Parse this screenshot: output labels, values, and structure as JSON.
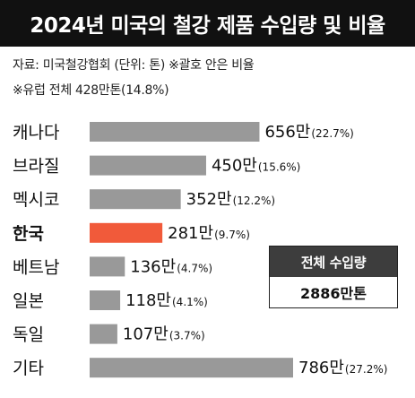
{
  "title": "2024년 미국의 철강 제품 수입량 및 비율",
  "source": "자료: 미국철강협회  (단위: 톤)  ※괄호 안은 비율",
  "note": "※유럽 전체 428만톤(14.8%)",
  "total": {
    "label": "전체 수입량",
    "value": "2886만톤"
  },
  "colors": {
    "bar": "#999999",
    "highlight": "#f15a3a"
  },
  "chart_data": {
    "type": "bar",
    "orientation": "horizontal",
    "unit": "만톤",
    "xlim": [
      0,
      786
    ],
    "categories": [
      "캐나다",
      "브라질",
      "멕시코",
      "한국",
      "베트남",
      "일본",
      "독일",
      "기타"
    ],
    "values": [
      656,
      450,
      352,
      281,
      136,
      118,
      107,
      786
    ],
    "value_labels": [
      "656만",
      "450만",
      "352만",
      "281만",
      "136만",
      "118만",
      "107만",
      "786만"
    ],
    "percent_labels": [
      "(22.7%)",
      "(15.6%)",
      "(12.2%)",
      "(9.7%)",
      "(4.7%)",
      "(4.1%)",
      "(3.7%)",
      "(27.2%)"
    ],
    "highlight": "한국"
  }
}
